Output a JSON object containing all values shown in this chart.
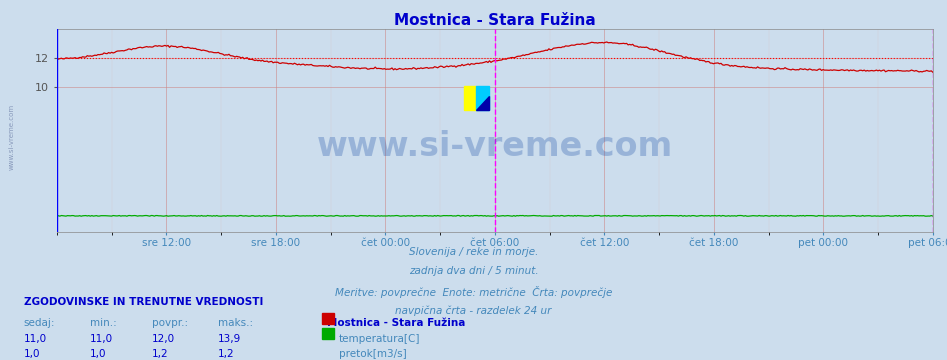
{
  "title": "Mostnica - Stara Fužina",
  "title_color": "#0000cc",
  "fig_bg_color": "#ccdded",
  "plot_bg_color": "#ccdded",
  "watermark_text": "www.si-vreme.com",
  "watermark_color": "#2255aa",
  "xlabel_color": "#4488bb",
  "x_tick_labels": [
    "sre 12:00",
    "sre 18:00",
    "čet 00:00",
    "čet 06:00",
    "čet 12:00",
    "čet 18:00",
    "pet 00:00",
    "pet 06:00"
  ],
  "x_tick_positions": [
    6,
    12,
    18,
    24,
    30,
    36,
    42,
    48
  ],
  "grid_color": "#cc8888",
  "avg_line_value": 12.0,
  "avg_line_color": "#ff0000",
  "vline_color": "#ff00ff",
  "left_vline_color": "#0000ff",
  "temp_color": "#cc0000",
  "flow_color": "#00aa00",
  "subtitle_lines": [
    "Slovenija / reke in morje.",
    "zadnja dva dni / 5 minut.",
    "Meritve: povprečne  Enote: metrične  Črta: povprečje",
    "navpična črta - razdelek 24 ur"
  ],
  "subtitle_color": "#4488bb",
  "table_header": "ZGODOVINSKE IN TRENUTNE VREDNOSTI",
  "table_header_color": "#0000cc",
  "col_headers": [
    "sedaj:",
    "min.:",
    "povpr.:",
    "maks.:"
  ],
  "col_header_color": "#4488bb",
  "station_name": "Mostnica - Stara Fužina",
  "station_color": "#0000cc",
  "row1_values": [
    "11,0",
    "11,0",
    "12,0",
    "13,9"
  ],
  "row2_values": [
    "1,0",
    "1,0",
    "1,2",
    "1,2"
  ],
  "row_color": "#0000cc",
  "legend_labels": [
    "temperatura[C]",
    "pretok[m3/s]"
  ],
  "legend_colors": [
    "#cc0000",
    "#00aa00"
  ],
  "left_label": "www.si-vreme.com",
  "left_label_color": "#8899bb"
}
